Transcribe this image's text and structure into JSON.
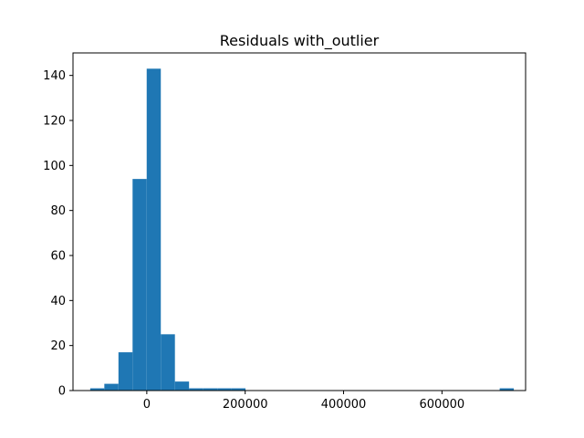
{
  "chart_data": {
    "type": "bar",
    "title": "Residuals with_outlier",
    "xlabel": "",
    "ylabel": "",
    "bar_color": "#1f77b4",
    "grid": false,
    "xlim": [
      -150000,
      770000
    ],
    "ylim": [
      0,
      150
    ],
    "bin_width": 28700,
    "bins": [
      {
        "start": -115000,
        "count": 1
      },
      {
        "start": -86300,
        "count": 3
      },
      {
        "start": -57600,
        "count": 17
      },
      {
        "start": -28900,
        "count": 94
      },
      {
        "start": -200,
        "count": 143
      },
      {
        "start": 28500,
        "count": 25
      },
      {
        "start": 57200,
        "count": 4
      },
      {
        "start": 85900,
        "count": 1
      },
      {
        "start": 114600,
        "count": 1
      },
      {
        "start": 143300,
        "count": 1
      },
      {
        "start": 172000,
        "count": 1
      },
      {
        "start": 200700,
        "count": 0
      },
      {
        "start": 229400,
        "count": 0
      },
      {
        "start": 258100,
        "count": 0
      },
      {
        "start": 286800,
        "count": 0
      },
      {
        "start": 315500,
        "count": 0
      },
      {
        "start": 344200,
        "count": 0
      },
      {
        "start": 372900,
        "count": 0
      },
      {
        "start": 401600,
        "count": 0
      },
      {
        "start": 430300,
        "count": 0
      },
      {
        "start": 459000,
        "count": 0
      },
      {
        "start": 487700,
        "count": 0
      },
      {
        "start": 516400,
        "count": 0
      },
      {
        "start": 545100,
        "count": 0
      },
      {
        "start": 573800,
        "count": 0
      },
      {
        "start": 602500,
        "count": 0
      },
      {
        "start": 631200,
        "count": 0
      },
      {
        "start": 659900,
        "count": 0
      },
      {
        "start": 688600,
        "count": 0
      },
      {
        "start": 717300,
        "count": 1
      }
    ],
    "x_ticks": [
      {
        "value": 0,
        "label": "0"
      },
      {
        "value": 200000,
        "label": "200000"
      },
      {
        "value": 400000,
        "label": "400000"
      },
      {
        "value": 600000,
        "label": "600000"
      }
    ],
    "y_ticks": [
      {
        "value": 0,
        "label": "0"
      },
      {
        "value": 20,
        "label": "20"
      },
      {
        "value": 40,
        "label": "40"
      },
      {
        "value": 60,
        "label": "60"
      },
      {
        "value": 80,
        "label": "80"
      },
      {
        "value": 100,
        "label": "100"
      },
      {
        "value": 120,
        "label": "120"
      },
      {
        "value": 140,
        "label": "140"
      }
    ]
  }
}
